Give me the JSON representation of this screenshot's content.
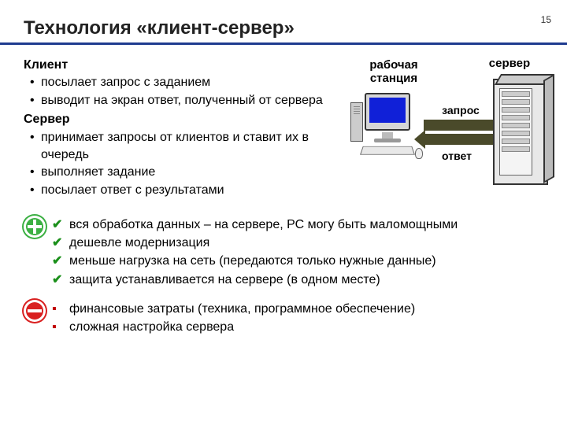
{
  "page_number": "15",
  "title": "Технология «клиент-сервер»",
  "client": {
    "heading": "Клиент",
    "items": [
      "посылает запрос с заданием",
      "выводит на экран ответ, полученный от сервера"
    ]
  },
  "server": {
    "heading": "Сервер",
    "items": [
      "принимает запросы от клиентов и ставит их в очередь",
      "выполняет задание",
      "посылает ответ с результатами"
    ]
  },
  "diagram": {
    "workstation_label": "рабочая станция",
    "server_label": "сервер",
    "request_label": "запрос",
    "response_label": "ответ"
  },
  "pros": [
    "вся обработка данных – на сервере, РС могу быть маломощными",
    "дешевле модернизация",
    "меньше нагрузка на сеть (передаются только нужные данные)",
    "защита устанавливается на сервере (в одном месте)"
  ],
  "cons": [
    "финансовые затраты (техника, программное обеспечение)",
    "сложная настройка сервера"
  ],
  "style": {
    "title_underline": "#1f3b8f",
    "pro_mark_color": "#1a8f1a",
    "con_mark_color": "#c00000",
    "plus_icon_color": "#3cb043",
    "minus_icon_color": "#d92020",
    "arrow_color": "#4a4a2a",
    "screen_color": "#1020d8",
    "background": "#ffffff",
    "font_family": "Arial",
    "title_fontsize_pt": 18,
    "body_fontsize_pt": 12
  }
}
